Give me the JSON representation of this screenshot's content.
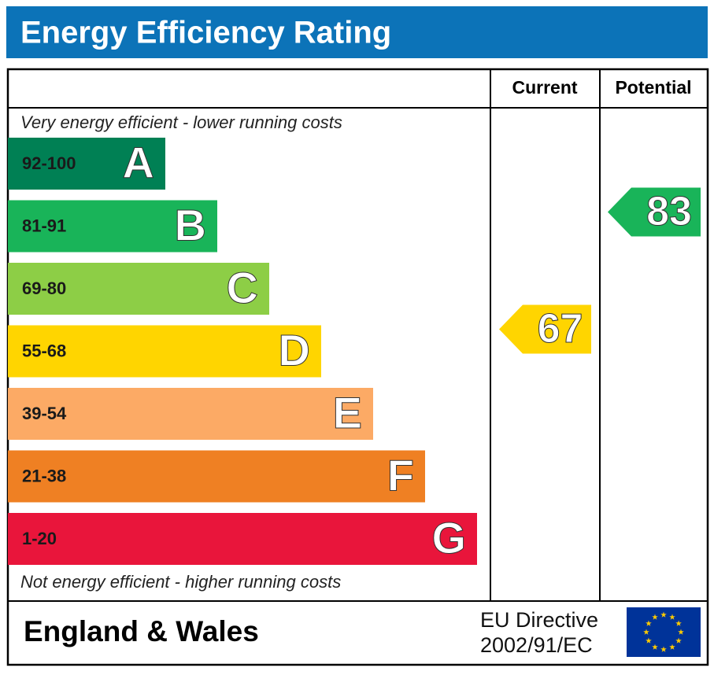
{
  "header": {
    "title": "Energy Efficiency Rating"
  },
  "columns": {
    "current": "Current",
    "potential": "Potential"
  },
  "top_note": "Very energy efficient - lower running costs",
  "bottom_note": "Not energy efficient - higher running costs",
  "bands": [
    {
      "range": "92-100",
      "letter": "A",
      "color": "#008054"
    },
    {
      "range": "81-91",
      "letter": "B",
      "color": "#19b459"
    },
    {
      "range": "69-80",
      "letter": "C",
      "color": "#8dce46"
    },
    {
      "range": "55-68",
      "letter": "D",
      "color": "#ffd500"
    },
    {
      "range": "39-54",
      "letter": "E",
      "color": "#fcaa65"
    },
    {
      "range": "21-38",
      "letter": "F",
      "color": "#ef8023"
    },
    {
      "range": "1-20",
      "letter": "G",
      "color": "#e9153b"
    }
  ],
  "ratings": {
    "current": 67,
    "potential": 83
  },
  "footer": {
    "region": "England & Wales",
    "directive": [
      "EU Directive",
      "2002/91/EC"
    ]
  }
}
